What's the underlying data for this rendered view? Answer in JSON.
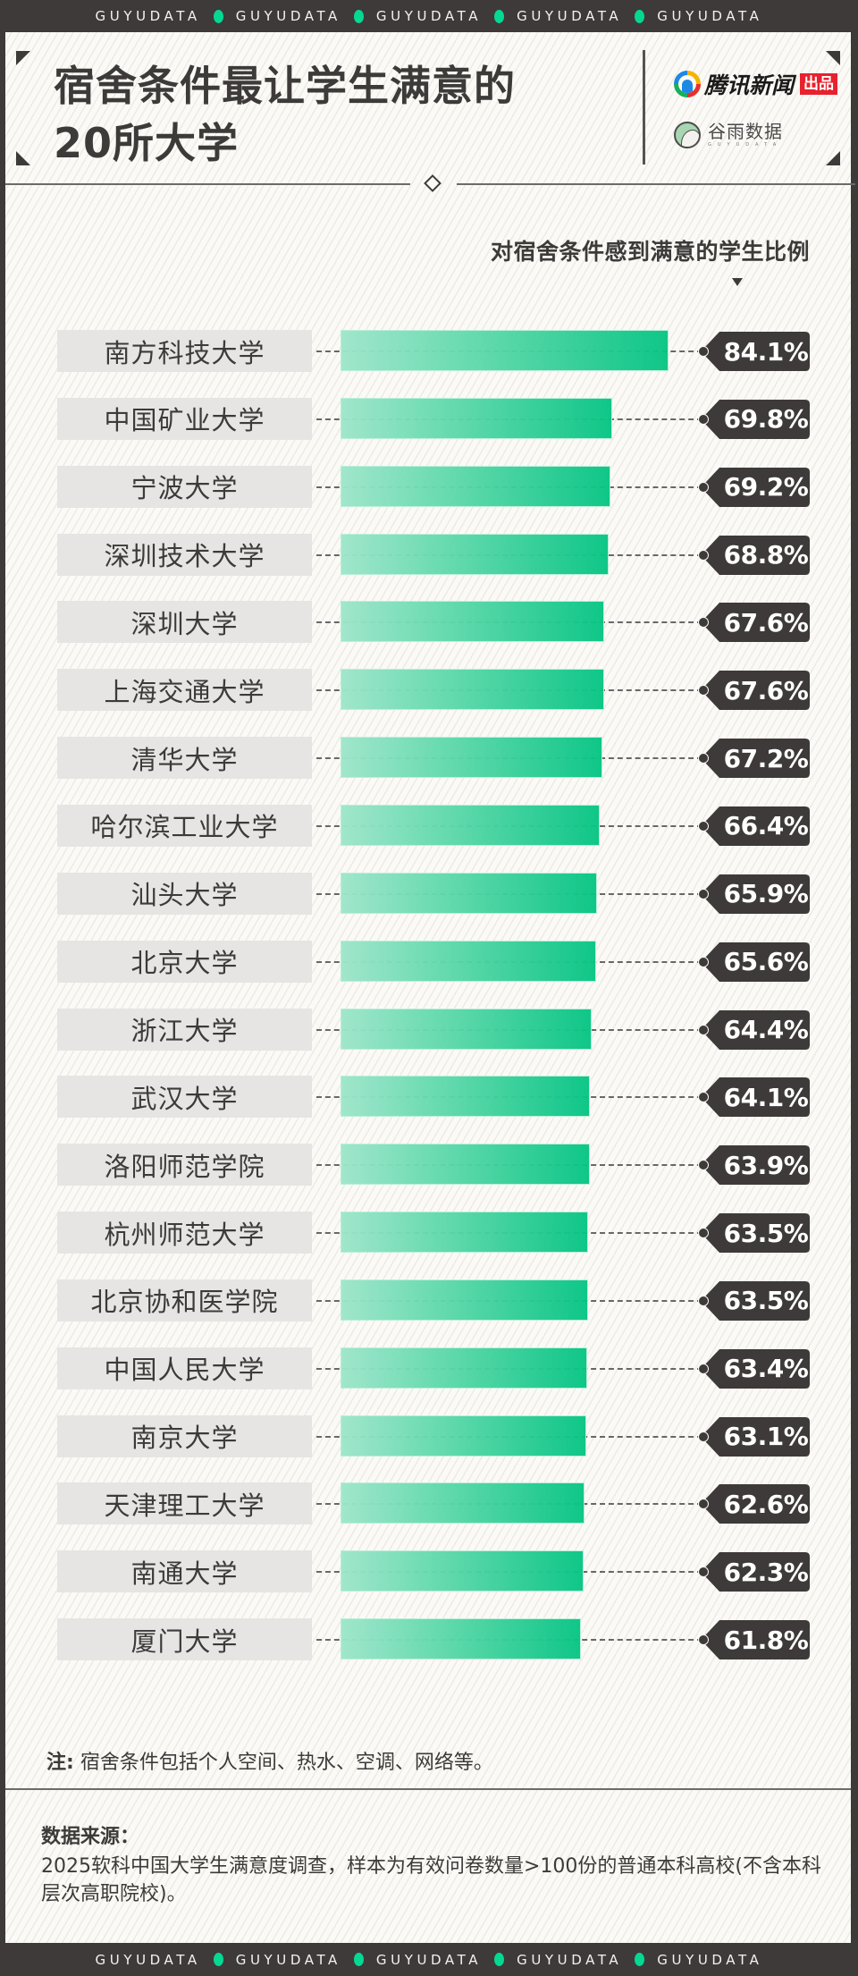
{
  "band": {
    "words": [
      "GUYUDATA",
      "GUYUDATA",
      "GUYUDATA",
      "GUYUDATA",
      "GUYUDATA"
    ],
    "dot_color": "#06d893"
  },
  "header": {
    "title_line1": "宿舍条件最让学生满意的",
    "title_line2": "20所大学",
    "logo_tencent": {
      "name": "腾讯新闻",
      "badge": "出品"
    },
    "logo_guyu": {
      "name": "谷雨数据",
      "sub": "GUYUDATA"
    }
  },
  "chart": {
    "axis_title": "对宿舍条件感到满意的学生比例"
  },
  "chart_data": {
    "type": "bar",
    "orientation": "horizontal",
    "title": "宿舍条件最让学生满意的20所大学",
    "xlabel": "对宿舍条件感到满意的学生比例",
    "ylabel": "",
    "unit": "%",
    "categories": [
      "南方科技大学",
      "中国矿业大学",
      "宁波大学",
      "深圳技术大学",
      "深圳大学",
      "上海交通大学",
      "清华大学",
      "哈尔滨工业大学",
      "汕头大学",
      "北京大学",
      "浙江大学",
      "武汉大学",
      "洛阳师范学院",
      "杭州师范大学",
      "北京协和医学院",
      "中国人民大学",
      "南京大学",
      "天津理工大学",
      "南通大学",
      "厦门大学"
    ],
    "values": [
      84.1,
      69.8,
      69.2,
      68.8,
      67.6,
      67.6,
      67.2,
      66.4,
      65.9,
      65.6,
      64.4,
      64.1,
      63.9,
      63.5,
      63.5,
      63.4,
      63.1,
      62.6,
      62.3,
      61.8
    ],
    "labels": [
      "84.1%",
      "69.8%",
      "69.2%",
      "68.8%",
      "67.6%",
      "67.6%",
      "67.2%",
      "66.4%",
      "65.9%",
      "65.6%",
      "64.4%",
      "64.1%",
      "63.9%",
      "63.5%",
      "63.5%",
      "63.4%",
      "63.1%",
      "62.6%",
      "62.3%",
      "61.8%"
    ],
    "bar_color_start": "#9ee6cb",
    "bar_color_end": "#06c584",
    "grid": false,
    "legend": false
  },
  "footer": {
    "note_label": "注:",
    "note_text": "宿舍条件包括个人空间、热水、空调、网络等。",
    "source_title": "数据来源：",
    "source_body": "2025软科中国大学生满意度调查，样本为有效问卷数量>100份的普通本科高校(不含本科层次高职院校)。"
  }
}
